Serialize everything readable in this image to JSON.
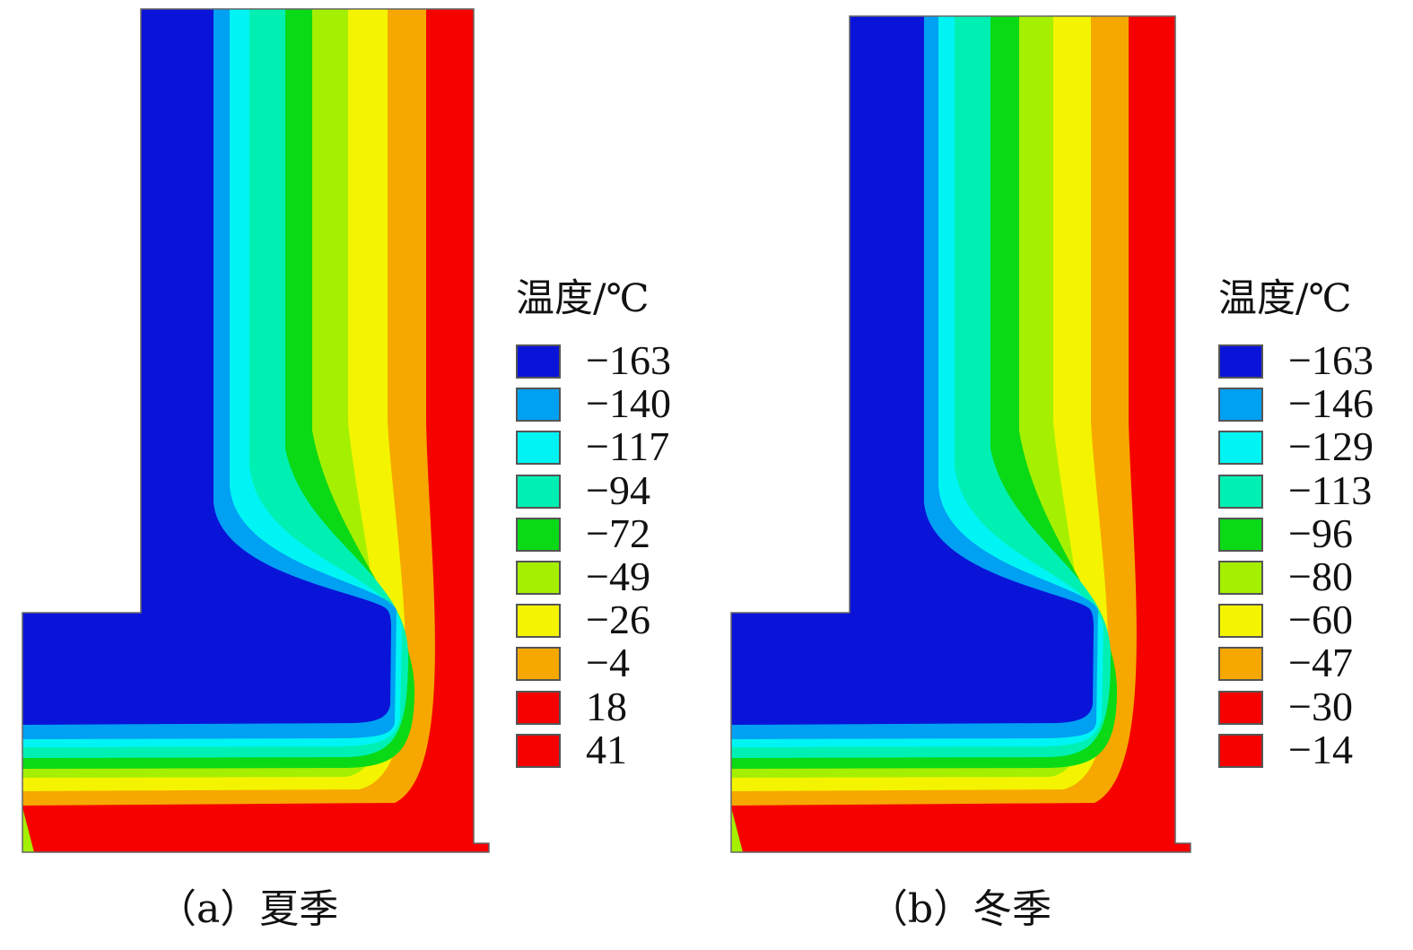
{
  "panels": [
    {
      "caption": "（a）夏季",
      "legend_title": "温度/℃",
      "levels": [
        {
          "label": "−163",
          "color": "#0a14d8"
        },
        {
          "label": "−140",
          "color": "#00a0f2"
        },
        {
          "label": "−117",
          "color": "#00f4f4"
        },
        {
          "label": "−94",
          "color": "#00f0b4"
        },
        {
          "label": "−72",
          "color": "#0ad916"
        },
        {
          "label": "−49",
          "color": "#a4f000"
        },
        {
          "label": "−26",
          "color": "#f4f400"
        },
        {
          "label": "−4",
          "color": "#f6a800"
        },
        {
          "label": "18",
          "color": "#f60000"
        },
        {
          "label": "41",
          "color": "#f60000"
        }
      ]
    },
    {
      "caption": "（b）冬季",
      "legend_title": "温度/℃",
      "levels": [
        {
          "label": "−163",
          "color": "#0a14d8"
        },
        {
          "label": "−146",
          "color": "#00a0f2"
        },
        {
          "label": "−129",
          "color": "#00f4f4"
        },
        {
          "label": "−113",
          "color": "#00f0b4"
        },
        {
          "label": "−96",
          "color": "#0ad916"
        },
        {
          "label": "−80",
          "color": "#a4f000"
        },
        {
          "label": "−60",
          "color": "#f4f400"
        },
        {
          "label": "−47",
          "color": "#f6a800"
        },
        {
          "label": "−30",
          "color": "#f60000"
        },
        {
          "label": "−14",
          "color": "#f60000"
        }
      ]
    }
  ]
}
